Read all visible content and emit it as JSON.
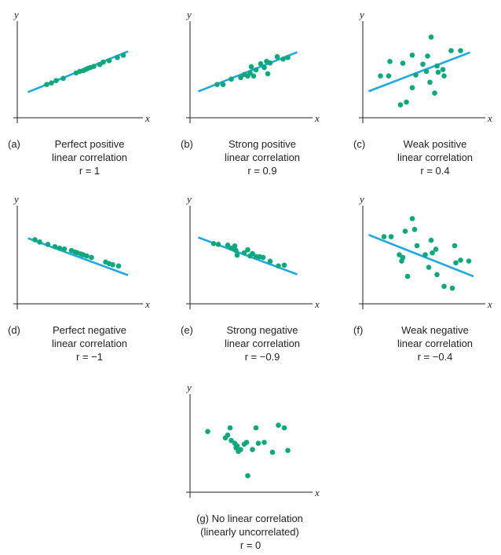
{
  "colors": {
    "fit_line": "#1fa9e1",
    "points": "#10a77c",
    "axes": "#231f20"
  },
  "chart_data": [
    {
      "type": "scatter",
      "panel": "a",
      "letter": "(a)",
      "caption": [
        "Perfect positive",
        "linear correlation"
      ],
      "r_label": "r = 1",
      "xlabel": "x",
      "ylabel": "y",
      "xlim": [
        0,
        10
      ],
      "ylim": [
        0,
        10
      ],
      "fit_line": [
        [
          0.9,
          2.1
        ],
        [
          9.4,
          7.4
        ]
      ],
      "points": [
        [
          2.5,
          3.1
        ],
        [
          2.9,
          3.3
        ],
        [
          3.3,
          3.6
        ],
        [
          3.9,
          3.9
        ],
        [
          5.0,
          4.6
        ],
        [
          5.3,
          4.8
        ],
        [
          5.6,
          4.9
        ],
        [
          5.8,
          5.05
        ],
        [
          6.0,
          5.2
        ],
        [
          6.2,
          5.3
        ],
        [
          6.5,
          5.45
        ],
        [
          7.0,
          5.7
        ],
        [
          7.3,
          6.0
        ],
        [
          7.8,
          6.2
        ],
        [
          8.5,
          6.6
        ],
        [
          9.0,
          6.9
        ]
      ]
    },
    {
      "type": "scatter",
      "panel": "b",
      "letter": "(b)",
      "caption": [
        "Strong positive",
        "linear correlation"
      ],
      "r_label": "r = 0.9",
      "xlabel": "x",
      "ylabel": "y",
      "xlim": [
        0,
        10
      ],
      "ylim": [
        0,
        10
      ],
      "fit_line": [
        [
          0.7,
          2.2
        ],
        [
          9.1,
          7.3
        ]
      ],
      "points": [
        [
          2.3,
          3.1
        ],
        [
          2.8,
          3.1
        ],
        [
          3.5,
          3.8
        ],
        [
          4.3,
          4.0
        ],
        [
          4.6,
          4.4
        ],
        [
          4.9,
          4.2
        ],
        [
          5.1,
          4.6
        ],
        [
          5.2,
          5.4
        ],
        [
          5.4,
          4.2
        ],
        [
          5.6,
          5.0
        ],
        [
          6.0,
          5.8
        ],
        [
          6.3,
          5.3
        ],
        [
          6.5,
          6.1
        ],
        [
          6.6,
          4.5
        ],
        [
          6.8,
          5.9
        ],
        [
          7.4,
          6.7
        ],
        [
          7.9,
          6.4
        ],
        [
          8.3,
          6.6
        ]
      ]
    },
    {
      "type": "scatter",
      "panel": "c",
      "letter": "(c)",
      "caption": [
        "Weak positive",
        "linear correlation"
      ],
      "r_label": "r = 0.4",
      "xlabel": "x",
      "ylabel": "y",
      "xlim": [
        0,
        10
      ],
      "ylim": [
        0,
        10
      ],
      "fit_line": [
        [
          0.5,
          2.5
        ],
        [
          9.1,
          6.8
        ]
      ],
      "points": [
        [
          1.5,
          4.2
        ],
        [
          2.2,
          4.2
        ],
        [
          2.3,
          5.8
        ],
        [
          3.2,
          1.0
        ],
        [
          3.4,
          5.6
        ],
        [
          3.7,
          1.3
        ],
        [
          4.2,
          2.9
        ],
        [
          4.2,
          6.5
        ],
        [
          4.5,
          4.3
        ],
        [
          5.1,
          5.5
        ],
        [
          5.4,
          4.7
        ],
        [
          5.5,
          6.4
        ],
        [
          5.7,
          3.5
        ],
        [
          5.8,
          8.5
        ],
        [
          6.1,
          2.3
        ],
        [
          6.3,
          5.3
        ],
        [
          6.4,
          4.6
        ],
        [
          6.8,
          4.9
        ],
        [
          6.9,
          4.2
        ],
        [
          7.5,
          7.0
        ],
        [
          8.3,
          7.0
        ]
      ]
    },
    {
      "type": "scatter",
      "panel": "d",
      "letter": "(d)",
      "caption": [
        "Perfect negative",
        "linear correlation"
      ],
      "r_label": "r = −1",
      "xlabel": "x",
      "ylabel": "y",
      "xlim": [
        0,
        10
      ],
      "ylim": [
        0,
        10
      ],
      "fit_line": [
        [
          0.9,
          7.3
        ],
        [
          9.4,
          2.5
        ]
      ],
      "points": [
        [
          1.5,
          7.1
        ],
        [
          1.9,
          6.8
        ],
        [
          2.6,
          6.5
        ],
        [
          3.2,
          6.2
        ],
        [
          3.6,
          6.0
        ],
        [
          4.0,
          5.9
        ],
        [
          4.6,
          5.7
        ],
        [
          4.9,
          5.5
        ],
        [
          5.1,
          5.4
        ],
        [
          5.4,
          5.25
        ],
        [
          5.6,
          5.15
        ],
        [
          5.9,
          5.0
        ],
        [
          6.3,
          4.8
        ],
        [
          7.5,
          4.2
        ],
        [
          7.8,
          4.0
        ],
        [
          8.1,
          3.85
        ],
        [
          8.6,
          3.7
        ]
      ]
    },
    {
      "type": "scatter",
      "panel": "e",
      "letter": "(e)",
      "caption": [
        "Strong negative",
        "linear correlation"
      ],
      "r_label": "r = −0.9",
      "xlabel": "x",
      "ylabel": "y",
      "xlim": [
        0,
        10
      ],
      "ylim": [
        0,
        10
      ],
      "fit_line": [
        [
          0.7,
          7.4
        ],
        [
          9.1,
          2.6
        ]
      ],
      "points": [
        [
          2.0,
          6.6
        ],
        [
          2.4,
          6.5
        ],
        [
          3.2,
          6.4
        ],
        [
          3.5,
          6.0
        ],
        [
          3.7,
          5.9
        ],
        [
          3.8,
          6.3
        ],
        [
          3.9,
          5.7
        ],
        [
          4.0,
          5.1
        ],
        [
          4.6,
          5.4
        ],
        [
          4.9,
          5.8
        ],
        [
          5.1,
          5.0
        ],
        [
          5.3,
          5.3
        ],
        [
          5.6,
          4.9
        ],
        [
          5.9,
          4.9
        ],
        [
          6.2,
          4.8
        ],
        [
          6.8,
          4.3
        ],
        [
          7.5,
          3.7
        ],
        [
          8.0,
          3.8
        ]
      ]
    },
    {
      "type": "scatter",
      "panel": "f",
      "letter": "(f)",
      "caption": [
        "Weak negative",
        "linear correlation"
      ],
      "r_label": "r = −0.4",
      "xlabel": "x",
      "ylabel": "y",
      "xlim": [
        0,
        10
      ],
      "ylim": [
        0,
        10
      ],
      "fit_line": [
        [
          0.5,
          7.2
        ],
        [
          9.4,
          2.6
        ]
      ],
      "points": [
        [
          1.8,
          7.0
        ],
        [
          2.4,
          7.0
        ],
        [
          3.1,
          5.0
        ],
        [
          3.3,
          4.3
        ],
        [
          3.4,
          4.7
        ],
        [
          3.6,
          7.6
        ],
        [
          3.8,
          2.6
        ],
        [
          4.2,
          9.0
        ],
        [
          4.4,
          7.8
        ],
        [
          4.6,
          6.0
        ],
        [
          5.3,
          5.0
        ],
        [
          5.6,
          3.6
        ],
        [
          5.8,
          6.6
        ],
        [
          5.9,
          5.2
        ],
        [
          6.2,
          5.6
        ],
        [
          6.3,
          2.8
        ],
        [
          6.9,
          1.5
        ],
        [
          7.6,
          1.3
        ],
        [
          7.8,
          6.0
        ],
        [
          8.3,
          4.4
        ],
        [
          7.9,
          4.1
        ],
        [
          9.0,
          4.3
        ]
      ]
    },
    {
      "type": "scatter",
      "panel": "g",
      "letter": "(g)",
      "caption": [
        "No linear correlation",
        "(linearly uncorrelated)"
      ],
      "r_label": "r = 0",
      "xlabel": "x",
      "ylabel": "y",
      "xlim": [
        0,
        10
      ],
      "ylim": [
        0,
        10
      ],
      "fit_line": null,
      "points": [
        [
          1.5,
          6.2
        ],
        [
          3.0,
          5.5
        ],
        [
          3.2,
          5.8
        ],
        [
          3.4,
          6.6
        ],
        [
          3.5,
          5.2
        ],
        [
          3.8,
          4.9
        ],
        [
          3.9,
          4.4
        ],
        [
          4.0,
          4.6
        ],
        [
          4.1,
          4.0
        ],
        [
          4.3,
          4.2
        ],
        [
          4.6,
          4.8
        ],
        [
          4.8,
          5.0
        ],
        [
          4.9,
          1.3
        ],
        [
          5.3,
          4.2
        ],
        [
          5.6,
          6.6
        ],
        [
          5.8,
          4.9
        ],
        [
          6.3,
          5.0
        ],
        [
          7.0,
          3.9
        ],
        [
          7.5,
          6.9
        ],
        [
          8.0,
          6.6
        ],
        [
          8.3,
          4.1
        ]
      ]
    }
  ]
}
